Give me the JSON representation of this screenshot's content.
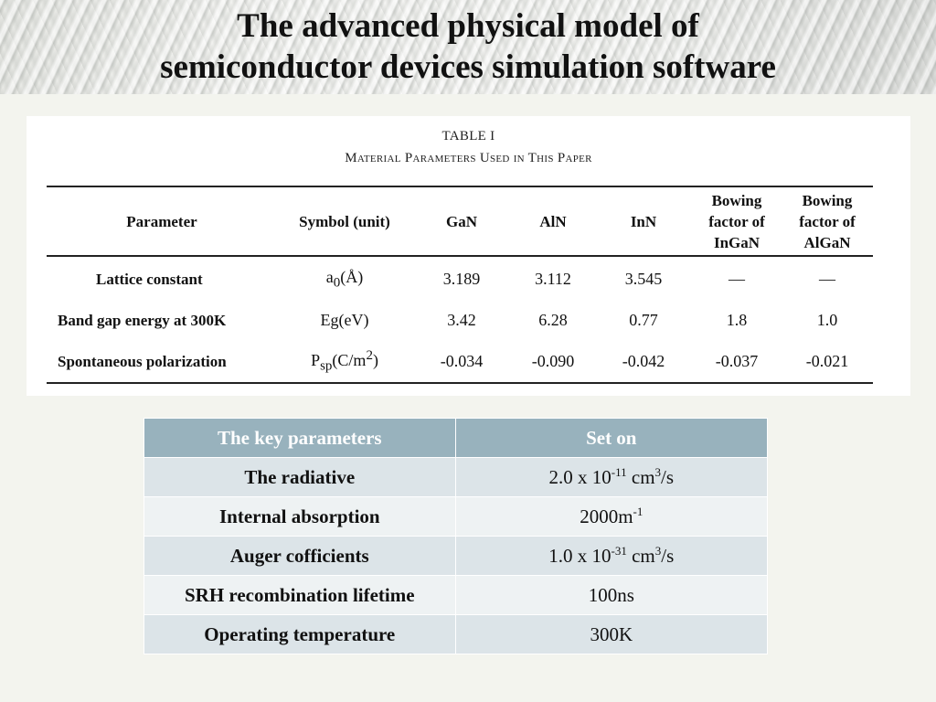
{
  "title": {
    "line1": "The advanced physical model of",
    "line2": "semiconductor devices simulation software"
  },
  "paper_table": {
    "caption_number": "TABLE I",
    "caption_text": "Material Parameters Used in This Paper",
    "headers": {
      "parameter": "Parameter",
      "symbol": "Symbol (unit)",
      "gan": "GaN",
      "aln": "AlN",
      "inn": "InN",
      "bow_ingan_1": "Bowing",
      "bow_ingan_2": "factor of",
      "bow_ingan_3": "InGaN",
      "bow_algan_1": "Bowing",
      "bow_algan_2": "factor of",
      "bow_algan_3": "AlGaN"
    },
    "rows": [
      {
        "parameter": "Lattice constant",
        "symbol_main": "a",
        "symbol_sub": "0",
        "symbol_unit": "(Å)",
        "gan": "3.189",
        "aln": "3.112",
        "inn": "3.545",
        "bow_ingan": "—",
        "bow_algan": "—"
      },
      {
        "parameter": "Band gap energy at 300K",
        "symbol_main": "Eg(eV)",
        "gan": "3.42",
        "aln": "6.28",
        "inn": "0.77",
        "bow_ingan": "1.8",
        "bow_algan": "1.0"
      },
      {
        "parameter": "Spontaneous polarization",
        "symbol_main": "P",
        "symbol_sub": "sp",
        "symbol_unit_pre": "(C/m",
        "symbol_sup": "2",
        "symbol_unit_post": ")",
        "gan": "-0.034",
        "aln": "-0.090",
        "inn": "-0.042",
        "bow_ingan": "-0.037",
        "bow_algan": "-0.021"
      }
    ]
  },
  "key_table": {
    "header_param": "The key parameters",
    "header_value": "Set  on",
    "rows": [
      {
        "name": "The radiative",
        "v_pre": "2.0 x 10",
        "v_sup": "-11",
        "v_mid": " cm",
        "v_sup2": "3",
        "v_post": "/s"
      },
      {
        "name": "Internal absorption",
        "v_pre": "2000m",
        "v_sup": "-1"
      },
      {
        "name": "Auger cofficients",
        "v_pre": "1.0 x 10",
        "v_sup": "-31",
        "v_mid": " cm",
        "v_sup2": "3",
        "v_post": "/s"
      },
      {
        "name": "SRH recombination lifetime",
        "v_pre": "100ns"
      },
      {
        "name": "Operating temperature",
        "v_pre": "300K"
      }
    ]
  }
}
